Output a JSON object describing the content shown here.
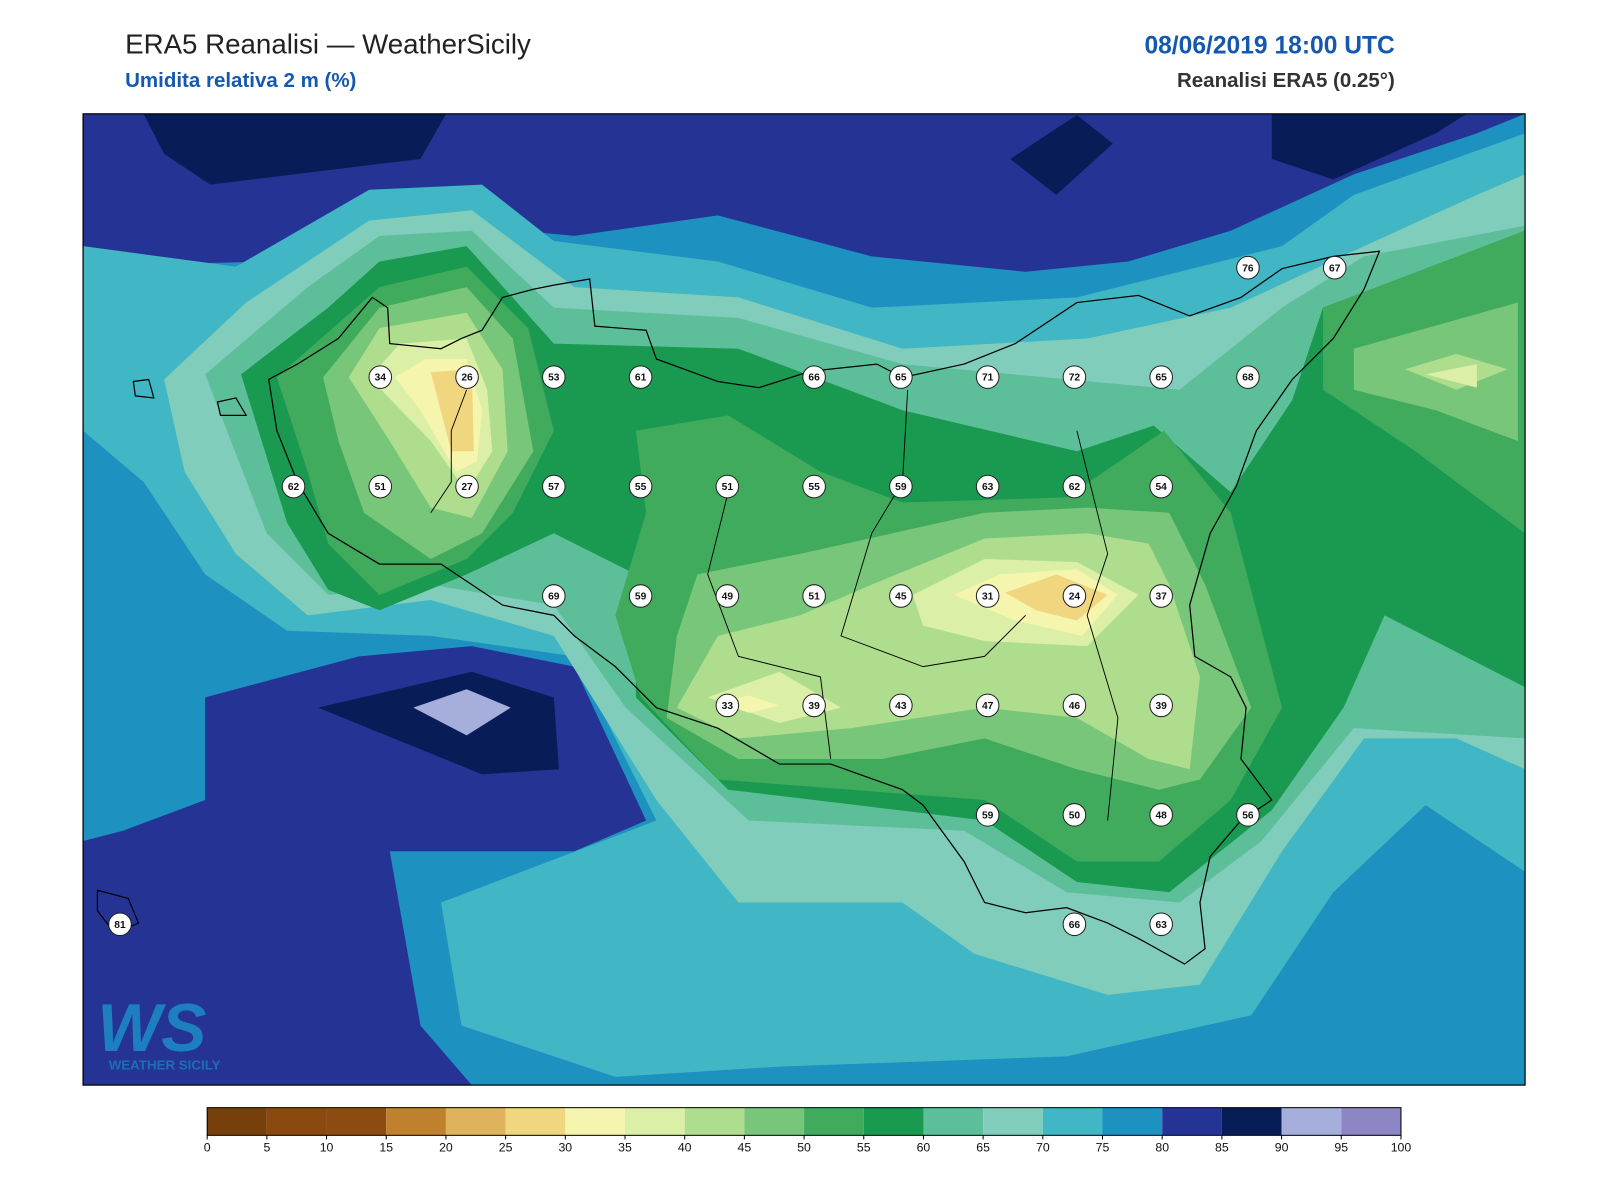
{
  "header": {
    "title": "ERA5 Reanalisi — WeatherSicily",
    "subtitle": "Umidita relativa 2 m (%)",
    "datetime": "08/06/2019 18:00 UTC",
    "source": "Reanalisi ERA5 (0.25°)"
  },
  "stations": {
    "rows": [
      [
        null,
        null,
        null,
        null,
        null,
        null,
        null,
        null,
        null,
        null,
        null,
        null,
        null,
        76,
        67
      ],
      [
        null,
        null,
        null,
        34,
        26,
        53,
        61,
        null,
        66,
        65,
        71,
        72,
        65,
        68,
        null
      ],
      [
        null,
        null,
        62,
        51,
        27,
        57,
        55,
        51,
        55,
        59,
        63,
        62,
        54,
        null,
        null
      ],
      [
        null,
        null,
        null,
        null,
        null,
        69,
        59,
        49,
        51,
        45,
        31,
        24,
        37,
        null,
        null
      ],
      [
        null,
        null,
        null,
        null,
        null,
        null,
        null,
        33,
        39,
        43,
        47,
        46,
        39,
        null,
        null
      ],
      [
        null,
        null,
        null,
        null,
        null,
        null,
        null,
        null,
        null,
        null,
        59,
        50,
        48,
        56,
        null
      ],
      [
        81,
        null,
        null,
        null,
        null,
        null,
        null,
        null,
        null,
        null,
        null,
        66,
        63,
        null,
        null
      ]
    ]
  },
  "colorbar": {
    "ticks": [
      0,
      5,
      10,
      15,
      20,
      25,
      30,
      35,
      40,
      45,
      50,
      55,
      60,
      65,
      70,
      75,
      80,
      85,
      90,
      95,
      100
    ],
    "colors": [
      "#77400a",
      "#8a4a0f",
      "#8c4b10",
      "#c0812e",
      "#dfb25d",
      "#f1d680",
      "#f6f5ae",
      "#dcefa6",
      "#aedd8e",
      "#78c679",
      "#41ab5d",
      "#1a9a50",
      "#5dbf9a",
      "#81cdbb",
      "#41b6c4",
      "#1d91c0",
      "#253494",
      "#081d58",
      "#a6aedc",
      "#8c86c4"
    ]
  },
  "logo": {
    "letters": "WS",
    "text": "WEATHER SICILY"
  }
}
